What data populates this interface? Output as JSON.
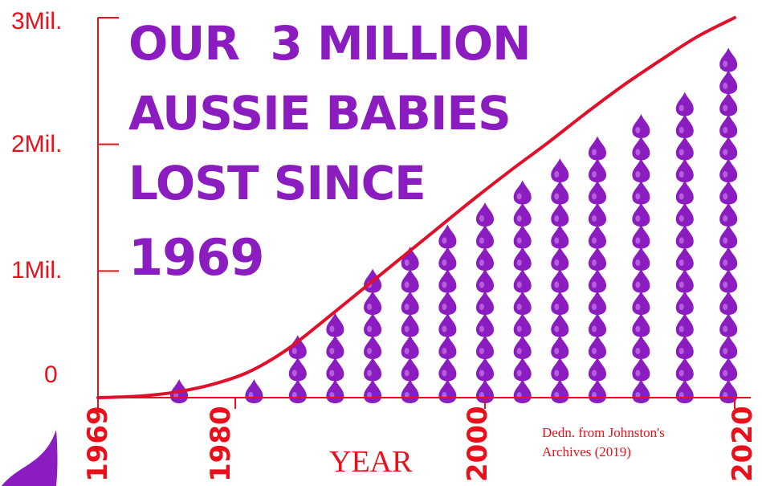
{
  "title_lines": [
    "OUR  3 MILLION",
    "AUSSIE BABIES",
    "LOST SINCE",
    "1969"
  ],
  "source_lines": [
    "Dedn. from Johnston's",
    "Archives (2019)"
  ],
  "colors": {
    "title": "#8a1cc0",
    "axis": "#e8101a",
    "curve": "#e0102a",
    "drop": "#8a1cc0"
  },
  "chart_data": {
    "type": "area",
    "title": "OUR  3 MILLION AUSSIE BABIES LOST SINCE 1969",
    "xlabel": "YEAR",
    "ylabel": "",
    "xlim": [
      1969,
      2020
    ],
    "ylim": [
      0,
      3000000
    ],
    "x_ticks": [
      1969,
      1980,
      2000,
      2020
    ],
    "x_tick_labels": [
      "1969",
      "1980",
      "2000",
      "2020"
    ],
    "y_ticks": [
      0,
      1000000,
      2000000,
      3000000
    ],
    "y_tick_labels": [
      "0",
      "1Mil.",
      "2Mil.",
      "3Mil."
    ],
    "grid": false,
    "legend": "none",
    "series": [
      {
        "x": [
          1969,
          1972,
          1975,
          1978,
          1981,
          1984,
          1987,
          1990,
          1993,
          1996,
          1999,
          2002,
          2005,
          2008,
          2011,
          2014,
          2017,
          2020
        ],
        "values": [
          0,
          10000,
          40000,
          100000,
          200000,
          370000,
          600000,
          840000,
          1080000,
          1320000,
          1560000,
          1790000,
          2010000,
          2240000,
          2460000,
          2660000,
          2850000,
          3000000
        ]
      }
    ],
    "drop_columns": {
      "x": [
        1975.5,
        1981.5,
        1985,
        1988,
        1991,
        1994,
        1997,
        2000,
        2003,
        2006,
        2009,
        2012.5,
        2016,
        2019.5
      ],
      "counts": [
        1,
        1,
        3,
        4,
        6,
        7,
        8,
        9,
        10,
        11,
        12,
        13,
        14,
        16
      ]
    }
  }
}
